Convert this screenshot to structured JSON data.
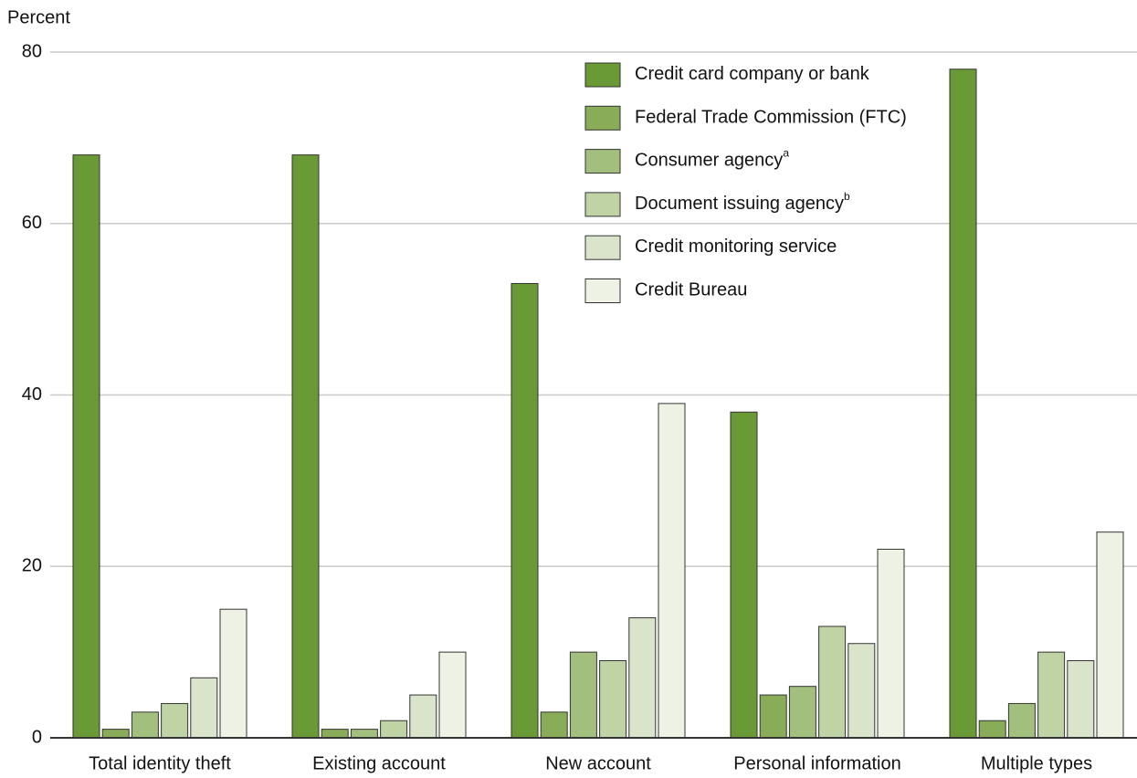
{
  "chart_data": {
    "type": "bar",
    "y_label": "Percent",
    "categories": [
      "Total identity theft",
      "Existing account",
      "New account",
      "Personal information",
      "Multiple types"
    ],
    "series": [
      {
        "name": "Credit card company or bank",
        "color": "#6a9a35",
        "values": [
          68,
          68,
          53,
          38,
          78
        ]
      },
      {
        "name": "Federal Trade Commission (FTC)",
        "color": "#88ac58",
        "values": [
          1,
          1,
          3,
          5,
          2
        ]
      },
      {
        "name": "Consumer agency",
        "note": "a",
        "color": "#a3bf7e",
        "values": [
          3,
          1,
          10,
          6,
          4
        ]
      },
      {
        "name": "Document issuing agency",
        "note": "b",
        "color": "#bfd3a5",
        "values": [
          4,
          2,
          9,
          13,
          10
        ]
      },
      {
        "name": "Credit monitoring service",
        "color": "#d9e4cb",
        "values": [
          7,
          5,
          14,
          11,
          9
        ]
      },
      {
        "name": "Credit Bureau",
        "color": "#eef2e4",
        "values": [
          15,
          10,
          39,
          22,
          24
        ]
      }
    ],
    "ylim": [
      0,
      80
    ],
    "yticks": [
      0,
      20,
      40,
      60,
      80
    ],
    "grid": true,
    "legend": "top-right"
  }
}
